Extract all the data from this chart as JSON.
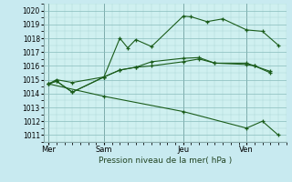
{
  "xlabel": "Pression niveau de la mer( hPa )",
  "bg_color": "#c8eaf0",
  "plot_bg_color": "#cff0f0",
  "line_color": "#1a5c1a",
  "grid_color_minor": "#aad4d4",
  "grid_color_major": "#88bbbb",
  "ylim": [
    1010.5,
    1020.5
  ],
  "yticks": [
    1011,
    1012,
    1013,
    1014,
    1015,
    1016,
    1017,
    1018,
    1019,
    1020
  ],
  "day_labels": [
    "Mer",
    "Sam",
    "Jeu",
    "Ven"
  ],
  "day_positions": [
    0.0,
    3.5,
    8.5,
    12.5
  ],
  "xlim": [
    -0.3,
    15.0
  ],
  "lines": [
    {
      "x": [
        0,
        0.5,
        1.5,
        3.5,
        4.5,
        5.0,
        5.5,
        6.5,
        8.5,
        9.0,
        10.0,
        11.0,
        12.5,
        13.5,
        14.5
      ],
      "y": [
        1014.7,
        1015.0,
        1014.8,
        1015.2,
        1018.0,
        1017.3,
        1017.9,
        1017.4,
        1019.6,
        1019.55,
        1019.2,
        1019.4,
        1018.6,
        1018.5,
        1017.5
      ]
    },
    {
      "x": [
        0,
        0.5,
        1.5,
        3.5,
        4.5,
        5.5,
        6.5,
        8.5,
        9.5,
        10.5,
        12.5,
        13.0,
        14.0
      ],
      "y": [
        1014.7,
        1014.9,
        1014.1,
        1015.2,
        1015.7,
        1015.9,
        1016.3,
        1016.55,
        1016.6,
        1016.2,
        1016.1,
        1016.0,
        1015.5
      ]
    },
    {
      "x": [
        0,
        0.5,
        1.5,
        3.5,
        4.5,
        5.5,
        6.5,
        8.5,
        9.5,
        10.5,
        12.5,
        13.0,
        14.0
      ],
      "y": [
        1014.7,
        1014.9,
        1014.1,
        1015.2,
        1015.7,
        1015.9,
        1016.0,
        1016.3,
        1016.5,
        1016.2,
        1016.2,
        1016.0,
        1015.6
      ]
    },
    {
      "x": [
        0,
        3.5,
        8.5,
        12.5,
        13.5,
        14.5
      ],
      "y": [
        1014.7,
        1013.8,
        1012.7,
        1011.5,
        1012.0,
        1011.0
      ]
    }
  ]
}
